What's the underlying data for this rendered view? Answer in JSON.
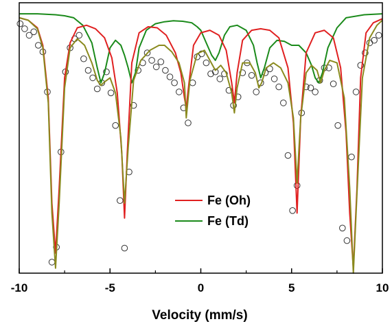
{
  "chart_data": {
    "type": "scatter",
    "title": "",
    "xlabel": "Velocity (mm/s)",
    "ylabel": "",
    "xlim": [
      -10,
      10
    ],
    "ylim": [
      0.948,
      1.002
    ],
    "x_ticks": [
      "-10",
      "-5",
      "0",
      "5",
      "10"
    ],
    "y_ticks_labeled": false,
    "legend_position": "center",
    "colors": {
      "data_markers": "#333333",
      "total_fit": "#8a8a1e",
      "oh": "#e02020",
      "td": "#1a8a1a"
    },
    "series": [
      {
        "name": "",
        "kind": "measured points (open circles)",
        "x": [
          -9.95,
          -9.7,
          -9.45,
          -9.2,
          -8.95,
          -8.7,
          -8.45,
          -8.2,
          -7.95,
          -7.7,
          -7.45,
          -7.2,
          -6.95,
          -6.7,
          -6.45,
          -6.2,
          -5.95,
          -5.7,
          -5.45,
          -5.2,
          -4.95,
          -4.7,
          -4.45,
          -4.2,
          -3.95,
          -3.7,
          -3.45,
          -3.2,
          -2.95,
          -2.7,
          -2.45,
          -2.2,
          -1.95,
          -1.7,
          -1.45,
          -1.2,
          -0.95,
          -0.7,
          -0.45,
          -0.2,
          0.05,
          0.3,
          0.55,
          0.8,
          1.05,
          1.3,
          1.55,
          1.8,
          2.05,
          2.3,
          2.55,
          2.8,
          3.05,
          3.3,
          3.55,
          3.8,
          4.05,
          4.3,
          4.55,
          4.8,
          5.05,
          5.3,
          5.55,
          5.8,
          6.05,
          6.3,
          6.55,
          6.8,
          7.05,
          7.3,
          7.55,
          7.8,
          8.05,
          8.3,
          8.55,
          8.8,
          9.05,
          9.3,
          9.55,
          9.8
        ],
        "y": [
          0.9978,
          0.9968,
          0.9955,
          0.9962,
          0.9935,
          0.9922,
          0.9842,
          0.9502,
          0.9532,
          0.9722,
          0.9882,
          0.993,
          0.9948,
          0.9955,
          0.9908,
          0.9885,
          0.987,
          0.9848,
          0.986,
          0.9882,
          0.984,
          0.9775,
          0.9625,
          0.953,
          0.9682,
          0.9815,
          0.9885,
          0.99,
          0.992,
          0.9905,
          0.9892,
          0.9902,
          0.9885,
          0.9872,
          0.986,
          0.9842,
          0.981,
          0.978,
          0.986,
          0.9912,
          0.9918,
          0.99,
          0.9878,
          0.9882,
          0.9868,
          0.9878,
          0.9845,
          0.9815,
          0.9832,
          0.988,
          0.99,
          0.9875,
          0.9842,
          0.986,
          0.988,
          0.9888,
          0.9868,
          0.9852,
          0.982,
          0.9715,
          0.9605,
          0.9655,
          0.98,
          0.9852,
          0.985,
          0.9842,
          0.9865,
          0.989,
          0.989,
          0.9858,
          0.9775,
          0.957,
          0.9545,
          0.9712,
          0.9842,
          0.9895,
          0.992,
          0.994,
          0.9945,
          0.9955
        ]
      },
      {
        "name": "",
        "kind": "total fit",
        "x": [
          -10,
          -9.5,
          -9,
          -8.7,
          -8.4,
          -8.2,
          -8.0,
          -7.8,
          -7.5,
          -7.2,
          -6.8,
          -6.4,
          -6.0,
          -5.7,
          -5.5,
          -5.3,
          -5.0,
          -4.7,
          -4.4,
          -4.2,
          -4.0,
          -3.7,
          -3.3,
          -2.8,
          -2.3,
          -2.0,
          -1.6,
          -1.2,
          -0.9,
          -0.8,
          -0.6,
          -0.2,
          0.2,
          0.5,
          0.8,
          1.1,
          1.4,
          1.7,
          1.85,
          2.0,
          2.3,
          2.7,
          3.0,
          3.2,
          3.35,
          3.6,
          4.0,
          4.4,
          4.8,
          5.1,
          5.3,
          5.5,
          5.8,
          6.1,
          6.4,
          6.6,
          6.8,
          7.1,
          7.5,
          7.9,
          8.2,
          8.4,
          8.6,
          8.9,
          9.3,
          9.7,
          10
        ],
        "y": [
          0.999,
          0.9985,
          0.9968,
          0.993,
          0.982,
          0.96,
          0.949,
          0.962,
          0.985,
          0.993,
          0.9948,
          0.9935,
          0.99,
          0.9865,
          0.9855,
          0.9862,
          0.987,
          0.984,
          0.975,
          0.962,
          0.973,
          0.9865,
          0.9905,
          0.9925,
          0.9935,
          0.9935,
          0.9922,
          0.99,
          0.986,
          0.979,
          0.9865,
          0.9918,
          0.9925,
          0.9905,
          0.9885,
          0.9895,
          0.988,
          0.984,
          0.98,
          0.985,
          0.99,
          0.99,
          0.988,
          0.985,
          0.986,
          0.989,
          0.99,
          0.989,
          0.986,
          0.979,
          0.966,
          0.979,
          0.988,
          0.9895,
          0.9885,
          0.986,
          0.9885,
          0.9905,
          0.99,
          0.983,
          0.965,
          0.948,
          0.964,
          0.987,
          0.995,
          0.9975,
          0.9985
        ]
      },
      {
        "name": "Fe (Oh)",
        "x": [
          -10,
          -9.5,
          -9,
          -8.7,
          -8.4,
          -8.2,
          -8.0,
          -7.8,
          -7.5,
          -7.2,
          -6.8,
          -6.3,
          -5.8,
          -5.3,
          -4.9,
          -4.6,
          -4.35,
          -4.2,
          -4.05,
          -3.8,
          -3.4,
          -2.9,
          -2.4,
          -1.9,
          -1.4,
          -1.1,
          -0.9,
          -0.8,
          -0.65,
          -0.4,
          0,
          0.5,
          1.0,
          1.4,
          1.7,
          1.85,
          2.0,
          2.3,
          2.8,
          3.3,
          3.8,
          4.3,
          4.8,
          5.1,
          5.3,
          5.5,
          5.8,
          6.3,
          6.8,
          7.3,
          7.7,
          8.0,
          8.2,
          8.4,
          8.6,
          8.8,
          9.1,
          9.5,
          10
        ],
        "y": [
          0.999,
          0.9985,
          0.997,
          0.9935,
          0.983,
          0.962,
          0.952,
          0.965,
          0.987,
          0.994,
          0.997,
          0.9975,
          0.9968,
          0.995,
          0.991,
          0.984,
          0.972,
          0.959,
          0.972,
          0.99,
          0.996,
          0.9972,
          0.997,
          0.9955,
          0.992,
          0.988,
          0.983,
          0.981,
          0.986,
          0.9935,
          0.996,
          0.9965,
          0.9955,
          0.9925,
          0.986,
          0.982,
          0.988,
          0.9945,
          0.9965,
          0.9968,
          0.9965,
          0.995,
          0.989,
          0.978,
          0.96,
          0.979,
          0.992,
          0.996,
          0.9965,
          0.995,
          0.989,
          0.976,
          0.96,
          0.949,
          0.965,
          0.987,
          0.996,
          0.998,
          0.9988
        ]
      },
      {
        "name": "Fe (Td)",
        "x": [
          -10,
          -9,
          -8,
          -7.5,
          -7,
          -6.5,
          -6.0,
          -5.7,
          -5.5,
          -5.3,
          -5.0,
          -4.7,
          -4.4,
          -4.2,
          -4.0,
          -3.8,
          -3.6,
          -3.4,
          -3.0,
          -2.5,
          -2.0,
          -1.5,
          -1.0,
          -0.5,
          -0.2,
          0,
          0.3,
          0.6,
          0.8,
          1.0,
          1.3,
          1.6,
          2.0,
          2.5,
          2.9,
          3.1,
          3.3,
          3.5,
          3.8,
          4.2,
          4.6,
          5.0,
          5.4,
          5.8,
          6.1,
          6.3,
          6.5,
          6.7,
          7.0,
          7.5,
          8,
          9,
          10
        ],
        "y": [
          0.9998,
          0.9998,
          0.9996,
          0.9994,
          0.999,
          0.9975,
          0.994,
          0.989,
          0.986,
          0.988,
          0.993,
          0.9945,
          0.9935,
          0.9915,
          0.989,
          0.986,
          0.988,
          0.993,
          0.9965,
          0.9978,
          0.9982,
          0.9984,
          0.9983,
          0.998,
          0.9972,
          0.9965,
          0.994,
          0.9915,
          0.9905,
          0.992,
          0.9955,
          0.9972,
          0.9975,
          0.9965,
          0.9935,
          0.99,
          0.987,
          0.989,
          0.993,
          0.9945,
          0.9943,
          0.9935,
          0.9935,
          0.992,
          0.9895,
          0.987,
          0.986,
          0.988,
          0.993,
          0.997,
          0.999,
          0.9996,
          0.9998
        ]
      }
    ]
  }
}
